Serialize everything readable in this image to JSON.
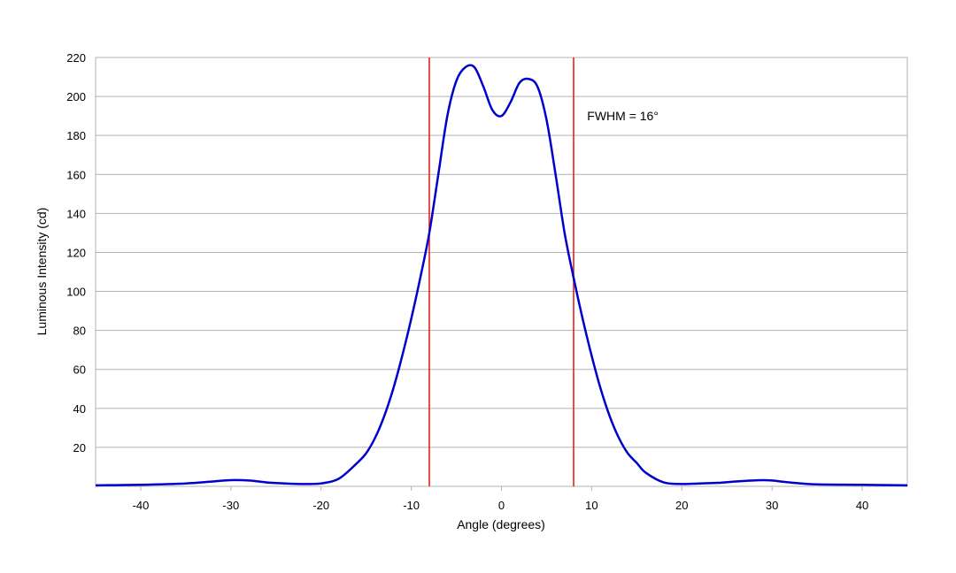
{
  "chart_data": {
    "type": "line",
    "title": "",
    "xlabel": "Angle (degrees)",
    "ylabel": "Luminous Intensity (cd)",
    "xlim": [
      -45,
      45
    ],
    "ylim": [
      0,
      220
    ],
    "xticks": [
      -40,
      -30,
      -20,
      -10,
      0,
      10,
      20,
      30,
      40
    ],
    "yticks": [
      20,
      40,
      60,
      80,
      100,
      120,
      140,
      160,
      180,
      200,
      220
    ],
    "grid": "horizontal",
    "legend": "none",
    "series": [
      {
        "color": "#0000cc",
        "x": [
          -45,
          -40,
          -35,
          -32,
          -30,
          -28,
          -26,
          -24,
          -22,
          -20,
          -18,
          -16,
          -15,
          -14,
          -13,
          -12,
          -11,
          -10,
          -9,
          -8,
          -7,
          -6,
          -5,
          -4,
          -3,
          -2,
          -1,
          0,
          1,
          2,
          3,
          4,
          5,
          6,
          7,
          8,
          9,
          10,
          11,
          12,
          13,
          14,
          15,
          16,
          18,
          20,
          22,
          24,
          26,
          28,
          29,
          30,
          32,
          35,
          40,
          45
        ],
        "y": [
          0.5,
          0.8,
          1.5,
          2.5,
          3.2,
          3.0,
          2.0,
          1.5,
          1.2,
          1.5,
          4,
          12,
          17,
          25,
          36,
          50,
          67,
          86,
          107,
          130,
          160,
          190,
          208,
          215,
          215,
          205,
          193,
          190,
          197,
          207,
          209,
          205,
          188,
          160,
          130,
          107,
          86,
          67,
          50,
          36,
          25,
          17,
          12,
          7,
          2,
          1.2,
          1.5,
          1.8,
          2.5,
          3.0,
          3.2,
          3.0,
          2.0,
          1.0,
          0.8,
          0.5
        ]
      }
    ],
    "vlines": [
      {
        "x": -8,
        "color": "#e8201b"
      },
      {
        "x": 8,
        "color": "#e8201b"
      }
    ],
    "annotations": [
      {
        "text": "FWHM = 16°",
        "x": 9.5,
        "y": 190
      }
    ]
  }
}
